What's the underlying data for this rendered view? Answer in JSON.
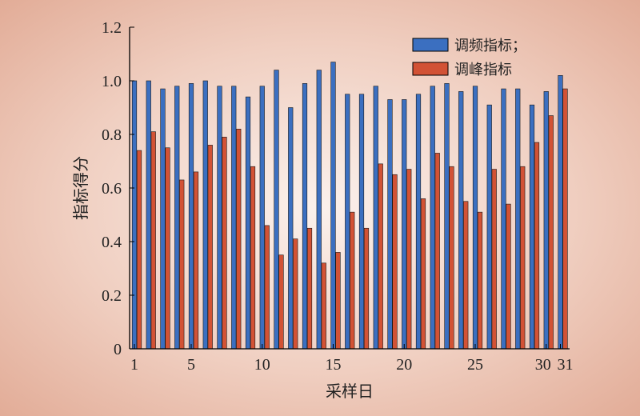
{
  "chart_data": {
    "type": "bar",
    "xlabel": "采样日",
    "ylabel": "指标得分",
    "ylim": [
      0,
      1.2
    ],
    "yticks": [
      "0",
      "0.2",
      "0.4",
      "0.6",
      "0.8",
      "1.0",
      "1.2"
    ],
    "xticks": [
      "1",
      "5",
      "10",
      "15",
      "20",
      "25",
      "30",
      "31"
    ],
    "categories": [
      "1",
      "2",
      "3",
      "4",
      "5",
      "6",
      "7",
      "8",
      "9",
      "10",
      "11",
      "12",
      "13",
      "14",
      "15",
      "16",
      "17",
      "18",
      "19",
      "20",
      "21",
      "22",
      "23",
      "24",
      "25",
      "26",
      "27",
      "28",
      "29",
      "30",
      "31"
    ],
    "legend_position": "top-right",
    "series": [
      {
        "name": "调频指标；",
        "color": "#3b6fc0",
        "values": [
          1.0,
          1.0,
          0.97,
          0.98,
          0.99,
          1.0,
          0.98,
          0.98,
          0.94,
          0.98,
          1.04,
          0.9,
          0.99,
          1.04,
          1.07,
          0.95,
          0.95,
          0.98,
          0.93,
          0.93,
          0.95,
          0.98,
          0.99,
          0.96,
          0.98,
          0.91,
          0.97,
          0.97,
          0.91,
          0.96,
          1.02
        ]
      },
      {
        "name": "调峰指标",
        "color": "#d25235",
        "values": [
          0.74,
          0.81,
          0.75,
          0.63,
          0.66,
          0.76,
          0.79,
          0.82,
          0.68,
          0.46,
          0.35,
          0.41,
          0.45,
          0.32,
          0.36,
          0.51,
          0.45,
          0.69,
          0.65,
          0.67,
          0.56,
          0.73,
          0.68,
          0.55,
          0.51,
          0.67,
          0.54,
          0.68,
          0.77,
          0.87,
          0.97
        ]
      }
    ]
  }
}
